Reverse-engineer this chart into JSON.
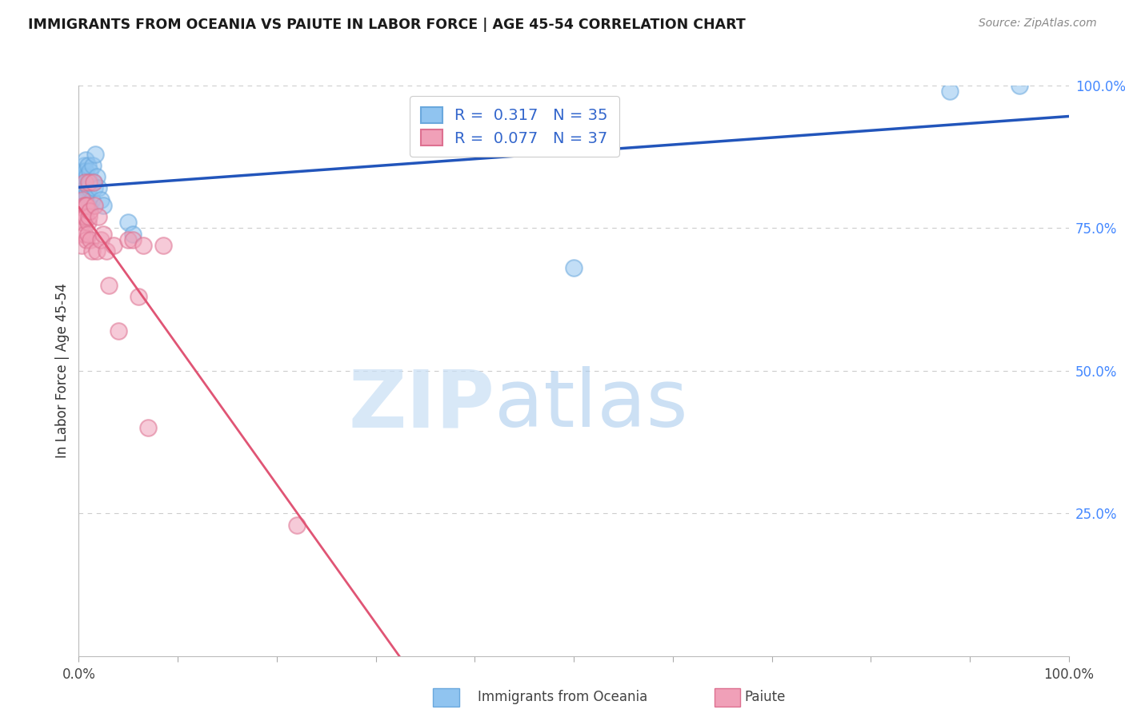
{
  "title": "IMMIGRANTS FROM OCEANIA VS PAIUTE IN LABOR FORCE | AGE 45-54 CORRELATION CHART",
  "source": "Source: ZipAtlas.com",
  "ylabel": "In Labor Force | Age 45-54",
  "xlim": [
    0.0,
    1.0
  ],
  "ylim": [
    0.0,
    1.0
  ],
  "ytick_positions_right": [
    1.0,
    0.75,
    0.5,
    0.25
  ],
  "ytick_labels_right": [
    "100.0%",
    "75.0%",
    "50.0%",
    "25.0%"
  ],
  "grid_color": "#cccccc",
  "background_color": "#ffffff",
  "legend_r1": "R =  0.317",
  "legend_n1": "N = 35",
  "legend_r2": "R =  0.077",
  "legend_n2": "N = 37",
  "blue_scatter_color": "#90c4f0",
  "pink_scatter_color": "#f0a0b8",
  "blue_edge_color": "#6aa8dd",
  "pink_edge_color": "#dd7090",
  "line_blue_color": "#2255bb",
  "line_pink_color": "#e05575",
  "watermark_color": "#d8eaf8",
  "oceania_x": [
    0.002,
    0.003,
    0.003,
    0.004,
    0.004,
    0.005,
    0.005,
    0.005,
    0.006,
    0.006,
    0.007,
    0.007,
    0.007,
    0.008,
    0.008,
    0.009,
    0.009,
    0.01,
    0.01,
    0.011,
    0.012,
    0.013,
    0.014,
    0.015,
    0.016,
    0.017,
    0.018,
    0.02,
    0.022,
    0.025,
    0.05,
    0.055,
    0.5,
    0.88,
    0.95
  ],
  "oceania_y": [
    0.84,
    0.83,
    0.84,
    0.85,
    0.82,
    0.86,
    0.84,
    0.81,
    0.83,
    0.8,
    0.87,
    0.85,
    0.82,
    0.84,
    0.81,
    0.86,
    0.83,
    0.82,
    0.79,
    0.85,
    0.83,
    0.8,
    0.86,
    0.83,
    0.82,
    0.88,
    0.84,
    0.82,
    0.8,
    0.79,
    0.76,
    0.74,
    0.68,
    0.99,
    1.0
  ],
  "paiute_x": [
    0.002,
    0.003,
    0.003,
    0.004,
    0.004,
    0.005,
    0.005,
    0.006,
    0.006,
    0.007,
    0.007,
    0.008,
    0.008,
    0.009,
    0.009,
    0.01,
    0.01,
    0.011,
    0.012,
    0.013,
    0.015,
    0.016,
    0.018,
    0.02,
    0.022,
    0.025,
    0.028,
    0.03,
    0.035,
    0.04,
    0.05,
    0.055,
    0.06,
    0.065,
    0.07,
    0.085,
    0.22
  ],
  "paiute_y": [
    0.77,
    0.74,
    0.72,
    0.8,
    0.76,
    0.79,
    0.77,
    0.74,
    0.83,
    0.79,
    0.77,
    0.73,
    0.79,
    0.76,
    0.74,
    0.83,
    0.77,
    0.78,
    0.73,
    0.71,
    0.83,
    0.79,
    0.71,
    0.77,
    0.73,
    0.74,
    0.71,
    0.65,
    0.72,
    0.57,
    0.73,
    0.73,
    0.63,
    0.72,
    0.4,
    0.72,
    0.23
  ]
}
